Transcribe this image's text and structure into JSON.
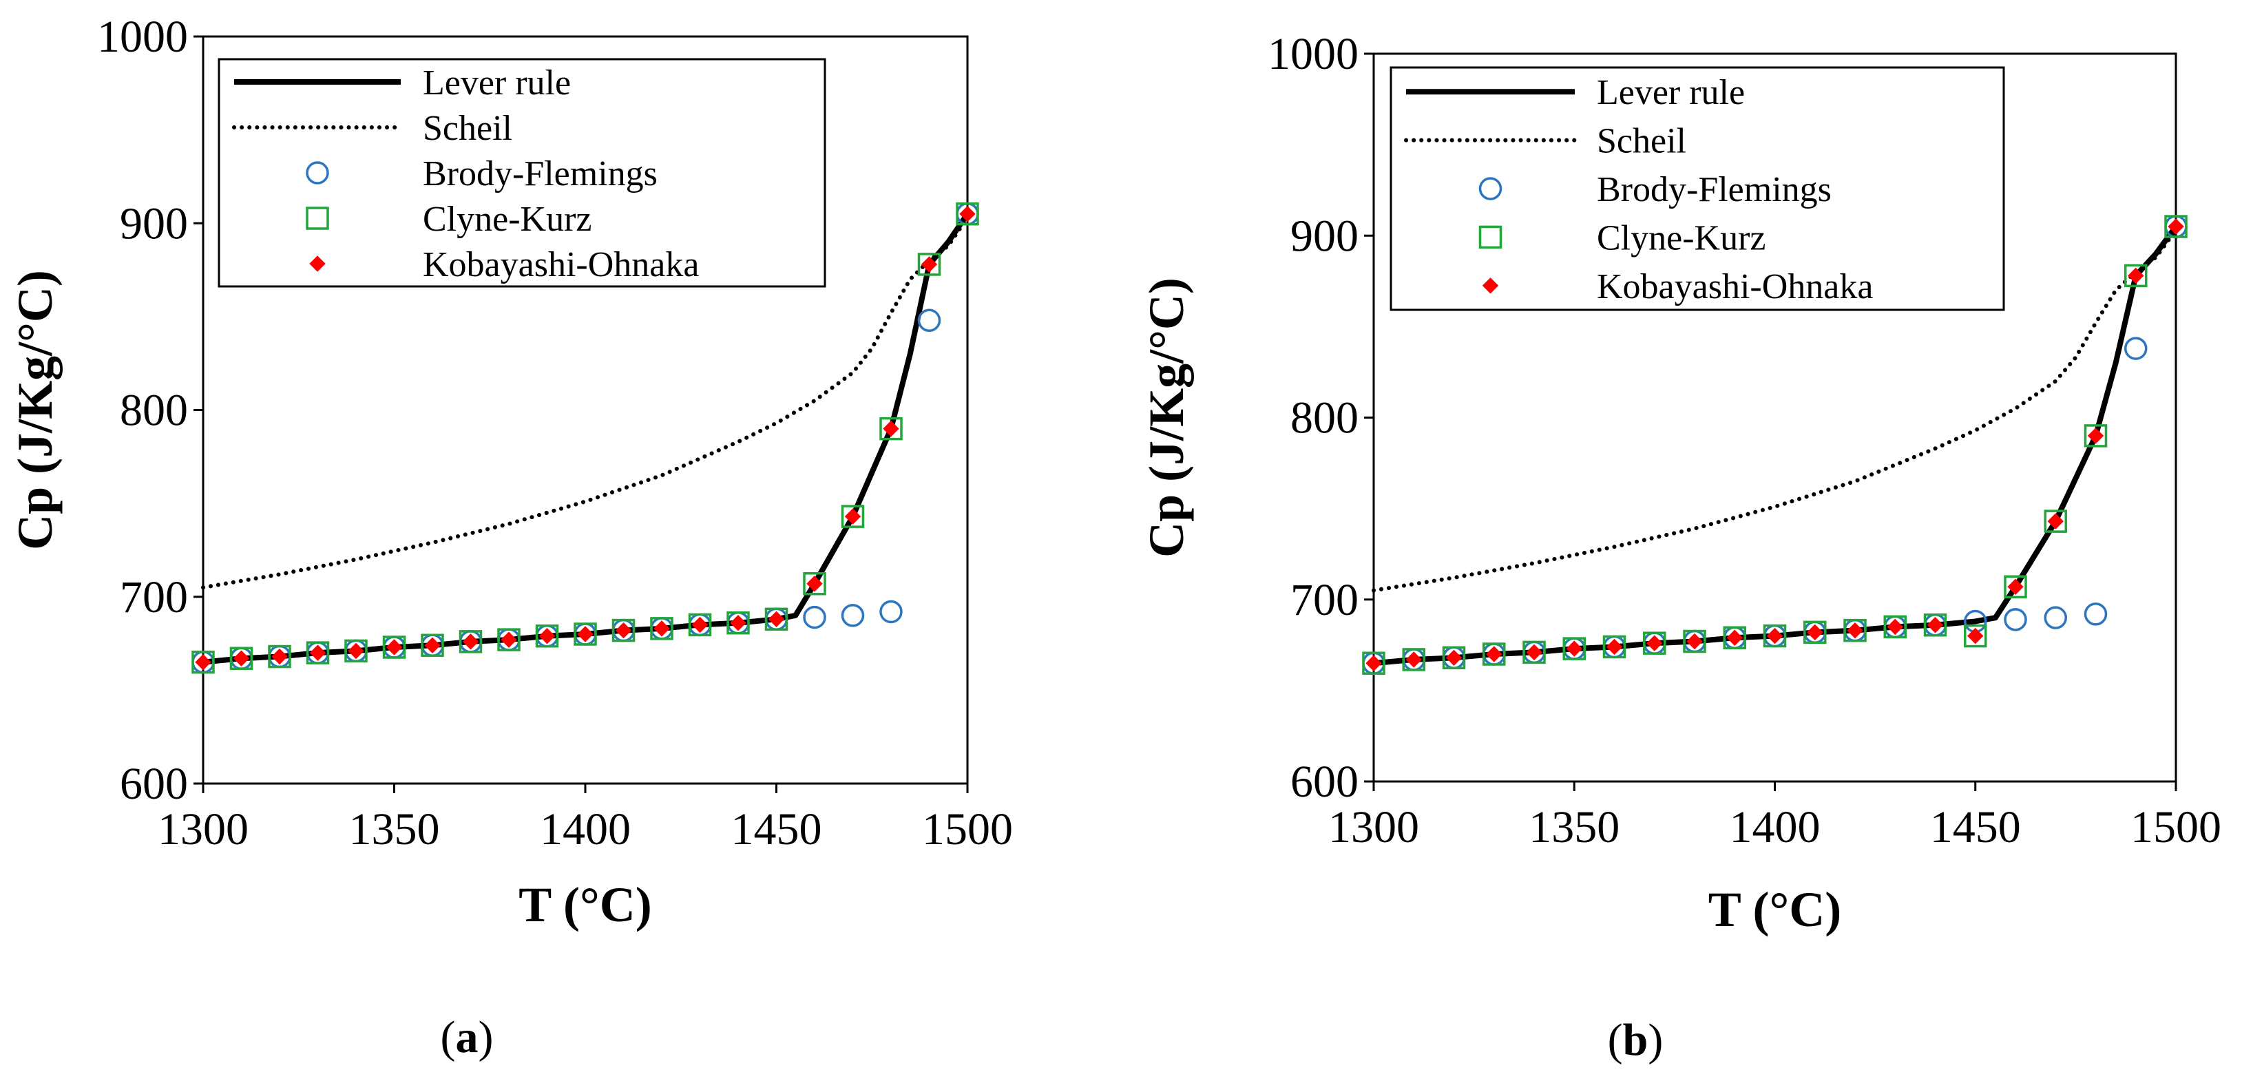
{
  "chart_data": [
    {
      "type": "line",
      "panel_label": "a",
      "caption_open": "(",
      "caption_close": ")",
      "xlabel": "T (°C)",
      "ylabel": "Cp (J/Kg/°C)",
      "xlim": [
        1300,
        1500
      ],
      "ylim": [
        600,
        1000
      ],
      "xticks": [
        1300,
        1350,
        1400,
        1450,
        1500
      ],
      "yticks": [
        600,
        700,
        800,
        900,
        1000
      ],
      "legend": "top-left",
      "series": [
        {
          "name": "Lever rule",
          "style": "solid-line",
          "color": "#000000",
          "x": [
            1300,
            1310,
            1320,
            1330,
            1340,
            1350,
            1360,
            1370,
            1380,
            1390,
            1400,
            1410,
            1420,
            1430,
            1440,
            1450,
            1455,
            1460,
            1470,
            1480,
            1485,
            1490,
            1495,
            1500
          ],
          "y": [
            665,
            667,
            668,
            670,
            671,
            673,
            674,
            676,
            677,
            679,
            680,
            682,
            683,
            685,
            686,
            688,
            690,
            707,
            743,
            790,
            830,
            878,
            890,
            905
          ]
        },
        {
          "name": "Scheil",
          "style": "dotted-line",
          "color": "#000000",
          "x": [
            1300,
            1320,
            1340,
            1360,
            1380,
            1400,
            1420,
            1440,
            1450,
            1460,
            1470,
            1475,
            1480,
            1485,
            1490,
            1495,
            1500
          ],
          "y": [
            705,
            712,
            720,
            729,
            739,
            751,
            765,
            783,
            793,
            805,
            820,
            833,
            852,
            870,
            880,
            888,
            903
          ]
        },
        {
          "name": "Brody-Flemings",
          "style": "open-circle",
          "color": "#2e75c0",
          "x": [
            1300,
            1310,
            1320,
            1330,
            1340,
            1350,
            1360,
            1370,
            1380,
            1390,
            1400,
            1410,
            1420,
            1430,
            1440,
            1450,
            1460,
            1470,
            1480,
            1490,
            1500
          ],
          "y": [
            665,
            667,
            668,
            670,
            671,
            673,
            674,
            676,
            677,
            679,
            680,
            682,
            683,
            685,
            686,
            688,
            689,
            690,
            692,
            848,
            905
          ]
        },
        {
          "name": "Clyne-Kurz",
          "style": "open-square",
          "color": "#22a53a",
          "x": [
            1300,
            1310,
            1320,
            1330,
            1340,
            1350,
            1360,
            1370,
            1380,
            1390,
            1400,
            1410,
            1420,
            1430,
            1440,
            1450,
            1460,
            1470,
            1480,
            1490,
            1500
          ],
          "y": [
            665,
            667,
            668,
            670,
            671,
            673,
            674,
            676,
            677,
            679,
            680,
            682,
            683,
            685,
            686,
            688,
            707,
            743,
            790,
            878,
            905
          ]
        },
        {
          "name": "Kobayashi-Ohnaka",
          "style": "filled-diamond",
          "color": "#ff0000",
          "x": [
            1300,
            1310,
            1320,
            1330,
            1340,
            1350,
            1360,
            1370,
            1380,
            1390,
            1400,
            1410,
            1420,
            1430,
            1440,
            1450,
            1460,
            1470,
            1480,
            1490,
            1500
          ],
          "y": [
            665,
            667,
            668,
            670,
            671,
            673,
            674,
            676,
            677,
            679,
            680,
            682,
            683,
            685,
            686,
            688,
            707,
            743,
            790,
            878,
            905
          ]
        }
      ]
    },
    {
      "type": "line",
      "panel_label": "b",
      "caption_open": "(",
      "caption_close": ")",
      "xlabel": "T (°C)",
      "ylabel": "Cp (J/Kg/°C)",
      "xlim": [
        1300,
        1500
      ],
      "ylim": [
        600,
        1000
      ],
      "xticks": [
        1300,
        1350,
        1400,
        1450,
        1500
      ],
      "yticks": [
        600,
        700,
        800,
        900,
        1000
      ],
      "legend": "top-left",
      "series": [
        {
          "name": "Lever rule",
          "style": "solid-line",
          "color": "#000000",
          "x": [
            1300,
            1310,
            1320,
            1330,
            1340,
            1350,
            1360,
            1370,
            1380,
            1390,
            1400,
            1410,
            1420,
            1430,
            1440,
            1450,
            1455,
            1460,
            1470,
            1480,
            1485,
            1490,
            1495,
            1500
          ],
          "y": [
            665,
            667,
            668,
            670,
            671,
            673,
            674,
            676,
            677,
            679,
            680,
            682,
            683,
            685,
            686,
            688,
            690,
            707,
            743,
            790,
            830,
            878,
            890,
            905
          ]
        },
        {
          "name": "Scheil",
          "style": "dotted-line",
          "color": "#000000",
          "x": [
            1300,
            1320,
            1340,
            1360,
            1380,
            1400,
            1420,
            1440,
            1450,
            1460,
            1470,
            1475,
            1480,
            1485,
            1490,
            1495,
            1500
          ],
          "y": [
            705,
            712,
            720,
            729,
            739,
            751,
            765,
            783,
            793,
            805,
            820,
            833,
            852,
            870,
            880,
            888,
            903
          ]
        },
        {
          "name": "Brody-Flemings",
          "style": "open-circle",
          "color": "#2e75c0",
          "x": [
            1300,
            1310,
            1320,
            1330,
            1340,
            1350,
            1360,
            1370,
            1380,
            1390,
            1400,
            1410,
            1420,
            1430,
            1440,
            1450,
            1460,
            1470,
            1480,
            1490,
            1500
          ],
          "y": [
            665,
            667,
            668,
            670,
            671,
            673,
            674,
            676,
            677,
            679,
            680,
            682,
            683,
            685,
            686,
            688,
            689,
            690,
            692,
            838,
            905
          ]
        },
        {
          "name": "Clyne-Kurz",
          "style": "open-square",
          "color": "#22a53a",
          "x": [
            1300,
            1310,
            1320,
            1330,
            1340,
            1350,
            1360,
            1370,
            1380,
            1390,
            1400,
            1410,
            1420,
            1430,
            1440,
            1450,
            1460,
            1470,
            1480,
            1490,
            1500
          ],
          "y": [
            665,
            667,
            668,
            670,
            671,
            673,
            674,
            676,
            677,
            679,
            680,
            682,
            683,
            685,
            686,
            680,
            707,
            743,
            790,
            878,
            905
          ]
        },
        {
          "name": "Kobayashi-Ohnaka",
          "style": "filled-diamond",
          "color": "#ff0000",
          "x": [
            1300,
            1310,
            1320,
            1330,
            1340,
            1350,
            1360,
            1370,
            1380,
            1390,
            1400,
            1410,
            1420,
            1430,
            1440,
            1450,
            1460,
            1470,
            1480,
            1490,
            1500
          ],
          "y": [
            665,
            667,
            668,
            670,
            671,
            673,
            674,
            676,
            677,
            679,
            680,
            682,
            683,
            685,
            686,
            680,
            707,
            743,
            790,
            878,
            905
          ]
        }
      ]
    }
  ]
}
